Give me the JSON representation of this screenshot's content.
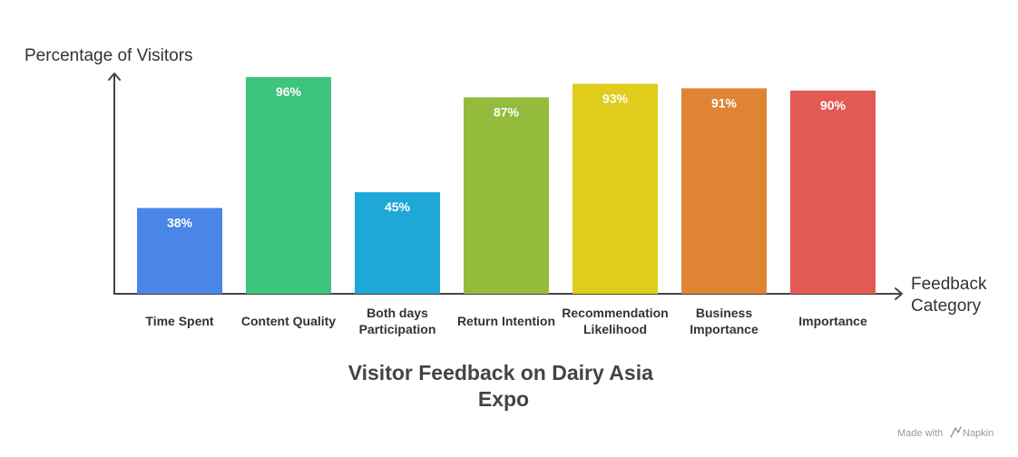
{
  "chart_data": {
    "type": "bar",
    "title_lines": [
      "Visitor Feedback on Dairy Asia",
      "Expo"
    ],
    "ylabel": "Percentage of Visitors",
    "xlabel_lines": [
      "Feedback",
      "Category"
    ],
    "ylim": [
      0,
      100
    ],
    "grid": false,
    "unit_suffix": "%",
    "categories": [
      [
        "Time Spent"
      ],
      [
        "Content Quality"
      ],
      [
        "Both days",
        "Participation"
      ],
      [
        "Return Intention"
      ],
      [
        "Recommendation",
        "Likelihood"
      ],
      [
        "Business",
        "Importance"
      ],
      [
        "Importance"
      ]
    ],
    "values": [
      38,
      96,
      45,
      87,
      93,
      91,
      90
    ],
    "colors": [
      "#4a86e8",
      "#3dc47e",
      "#1ea8d8",
      "#94bc3c",
      "#dfcc1b",
      "#de8432",
      "#e35a55"
    ]
  },
  "watermark": {
    "prefix": "Made with",
    "brand": "Napkin"
  }
}
